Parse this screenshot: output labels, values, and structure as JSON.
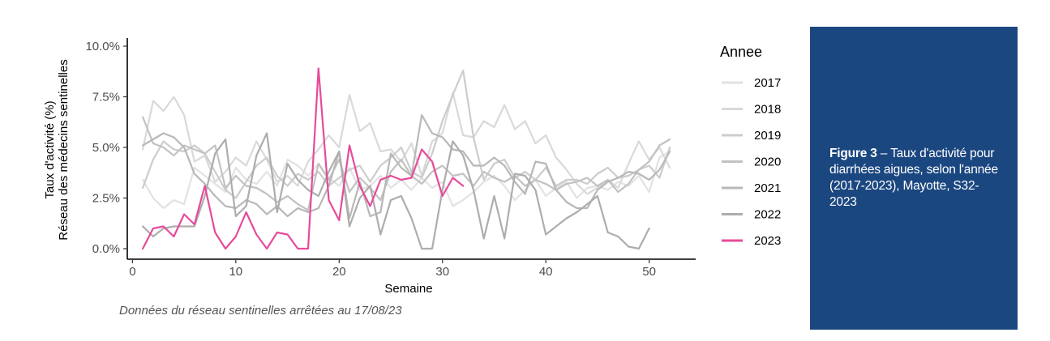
{
  "chart_data": {
    "type": "line",
    "xlabel": "Semaine",
    "ylabel_line1": "Taux d'activité (%)",
    "ylabel_line2": "Réseau des médecins sentinelles",
    "xlim": [
      0,
      52
    ],
    "ylim": [
      0,
      10
    ],
    "x_ticks": [
      0,
      10,
      20,
      30,
      40,
      50
    ],
    "x_tick_labels": [
      "0",
      "10",
      "20",
      "30",
      "40",
      "50"
    ],
    "y_ticks": [
      0,
      2.5,
      5,
      7.5,
      10
    ],
    "y_tick_labels": [
      "0.0%",
      "2.5%",
      "5.0%",
      "7.5%",
      "10.0%"
    ],
    "grid": false,
    "legend_title": "Annee",
    "legend_position": "right",
    "caption": "Données du réseau sentinelles arrêtées au  17/08/23",
    "series": [
      {
        "name": "2017",
        "color": "#e2e2e2",
        "x": [
          1,
          2,
          3,
          4,
          5,
          6,
          7,
          8,
          9,
          10,
          11,
          12,
          13,
          14,
          15,
          16,
          17,
          18,
          19,
          20,
          21,
          22,
          23,
          24,
          25,
          26,
          27,
          28,
          29,
          30,
          31,
          32,
          33,
          34,
          35,
          36,
          37,
          38,
          39,
          40,
          41,
          42,
          43,
          44,
          45,
          46,
          47,
          48,
          49,
          50,
          51,
          52
        ],
        "values": [
          3.4,
          2.5,
          2.0,
          2.4,
          2.2,
          4.0,
          3.6,
          3.2,
          2.8,
          4.0,
          3.4,
          3.2,
          3.8,
          3.1,
          4.4,
          4.1,
          3.6,
          4.2,
          3.5,
          3.1,
          4.0,
          2.9,
          3.1,
          3.6,
          3.0,
          3.4,
          2.9,
          3.5,
          3.0,
          3.3,
          2.1,
          2.4,
          2.8,
          3.3,
          3.6,
          3.1,
          2.4,
          2.9,
          3.4,
          2.6,
          3.0,
          3.3,
          2.5,
          3.0,
          3.1,
          2.9,
          3.3,
          3.1,
          3.6,
          2.8,
          4.5,
          4.8
        ]
      },
      {
        "name": "2018",
        "color": "#d9d9d9",
        "x": [
          1,
          2,
          3,
          4,
          5,
          6,
          7,
          8,
          9,
          10,
          11,
          12,
          13,
          14,
          15,
          16,
          17,
          18,
          19,
          20,
          21,
          22,
          23,
          24,
          25,
          26,
          27,
          28,
          29,
          30,
          31,
          32,
          33,
          34,
          35,
          36,
          37,
          38,
          39,
          40,
          41,
          42,
          43,
          44,
          45,
          46,
          47,
          48,
          49,
          50,
          51,
          52
        ],
        "values": [
          4.9,
          7.3,
          6.8,
          7.5,
          6.6,
          4.3,
          4.6,
          3.3,
          3.8,
          4.5,
          4.1,
          5.3,
          4.4,
          3.3,
          3.6,
          3.1,
          4.3,
          4.9,
          5.6,
          5.0,
          7.6,
          5.8,
          6.2,
          4.8,
          4.9,
          4.3,
          5.2,
          3.6,
          5.3,
          5.7,
          7.7,
          5.6,
          5.5,
          6.3,
          6.0,
          7.1,
          5.9,
          6.3,
          5.2,
          5.6,
          4.5,
          3.9,
          3.2,
          2.7,
          3.0,
          3.4,
          3.0,
          4.2,
          5.3,
          4.4,
          5.0,
          4.0
        ]
      },
      {
        "name": "2019",
        "color": "#cccccc",
        "x": [
          1,
          2,
          3,
          4,
          5,
          6,
          7,
          8,
          9,
          10,
          11,
          12,
          13,
          14,
          15,
          16,
          17,
          18,
          19,
          20,
          21,
          22,
          23,
          24,
          25,
          26,
          27,
          28,
          29,
          30,
          31,
          32,
          33,
          34,
          35,
          36,
          37,
          38,
          39,
          40,
          41,
          42,
          43,
          44,
          45,
          46,
          47,
          48,
          49,
          50,
          51,
          52
        ],
        "values": [
          3.0,
          4.4,
          5.3,
          4.9,
          4.8,
          5.1,
          4.7,
          3.8,
          2.9,
          2.5,
          3.3,
          4.1,
          4.5,
          3.6,
          3.1,
          3.7,
          3.4,
          3.8,
          3.1,
          3.5,
          3.9,
          4.1,
          3.3,
          4.1,
          4.5,
          5.0,
          3.8,
          3.5,
          4.7,
          6.3,
          7.6,
          8.8,
          5.5,
          3.4,
          4.2,
          4.4,
          3.5,
          3.8,
          3.4,
          4.0,
          3.1,
          3.4,
          3.4,
          3.2,
          3.7,
          4.0,
          3.5,
          3.6,
          3.9,
          4.1,
          3.5,
          5.0
        ]
      },
      {
        "name": "2020",
        "color": "#c2c2c2",
        "x": [
          1,
          2,
          3,
          4,
          5,
          6,
          7,
          8,
          9,
          10,
          11,
          12,
          13,
          14,
          15,
          16,
          17,
          18,
          19,
          20,
          21,
          22,
          23,
          24,
          25,
          26,
          27,
          28,
          29,
          30,
          31,
          32,
          33,
          34,
          35,
          36,
          37,
          38,
          39,
          40,
          41,
          42,
          43,
          44,
          45,
          46,
          47,
          48,
          49,
          50,
          51,
          52
        ],
        "values": [
          6.5,
          5.2,
          5.0,
          4.6,
          5.1,
          4.9,
          4.7,
          5.1,
          3.0,
          3.6,
          3.1,
          3.0,
          2.7,
          2.3,
          2.6,
          2.2,
          1.9,
          4.2,
          3.4,
          4.4,
          2.8,
          3.5,
          3.0,
          2.4,
          3.8,
          4.4,
          3.6,
          3.2,
          3.8,
          4.1,
          3.6,
          3.7,
          3.1,
          3.8,
          3.5,
          3.3,
          3.6,
          3.1,
          3.4,
          3.2,
          2.9,
          3.2,
          3.3,
          3.5,
          3.1,
          3.4,
          2.8,
          3.2,
          3.9,
          4.3,
          5.1,
          5.4
        ]
      },
      {
        "name": "2021",
        "color": "#b8b8b8",
        "x": [
          1,
          2,
          3,
          4,
          5,
          6,
          7,
          8,
          9,
          10,
          11,
          12,
          13,
          14,
          15,
          16,
          17,
          18,
          19,
          20,
          21,
          22,
          23,
          24,
          25,
          26,
          27,
          28,
          29,
          30,
          31,
          32,
          33,
          34,
          35,
          36,
          37,
          38,
          39,
          40,
          41,
          42,
          43,
          44,
          45,
          46,
          47,
          48,
          49,
          50,
          51,
          52
        ],
        "values": [
          5.1,
          5.4,
          5.7,
          5.5,
          5.0,
          3.7,
          3.2,
          2.6,
          2.1,
          2.0,
          2.4,
          2.2,
          1.7,
          2.1,
          1.6,
          2.0,
          1.8,
          2.0,
          3.1,
          4.8,
          1.5,
          3.3,
          1.6,
          1.8,
          4.7,
          4.0,
          3.6,
          6.6,
          5.7,
          5.5,
          4.9,
          4.8,
          4.1,
          4.1,
          4.5,
          4.1,
          3.3,
          2.7,
          4.3,
          4.2,
          2.9,
          2.3,
          2.0,
          2.0,
          2.9,
          3.3,
          3.5,
          3.8,
          3.7,
          3.4,
          3.9,
          4.8
        ]
      },
      {
        "name": "2022",
        "color": "#adadad",
        "x": [
          1,
          2,
          3,
          4,
          5,
          6,
          7,
          8,
          9,
          10,
          11,
          12,
          13,
          14,
          15,
          16,
          17,
          18,
          19,
          20,
          21,
          22,
          23,
          24,
          25,
          26,
          27,
          28,
          29,
          30,
          31,
          32,
          33,
          34,
          35,
          36,
          37,
          38,
          39,
          40,
          41,
          42,
          43,
          44,
          45,
          46,
          47,
          48,
          49,
          50
        ],
        "values": [
          1.1,
          0.6,
          1.0,
          1.1,
          1.1,
          1.1,
          2.6,
          4.7,
          5.4,
          1.6,
          2.1,
          4.6,
          5.7,
          1.8,
          4.2,
          3.4,
          2.9,
          2.6,
          3.8,
          4.8,
          1.1,
          2.5,
          3.1,
          0.7,
          2.4,
          2.6,
          1.5,
          0.0,
          0.0,
          2.9,
          5.3,
          4.6,
          2.9,
          0.5,
          2.6,
          0.5,
          3.7,
          3.6,
          2.9,
          0.7,
          1.1,
          1.5,
          1.8,
          2.2,
          2.6,
          0.8,
          0.6,
          0.1,
          0.0,
          1.0
        ]
      },
      {
        "name": "2023",
        "color": "#e64b9a",
        "x": [
          1,
          2,
          3,
          4,
          5,
          6,
          7,
          8,
          9,
          10,
          11,
          12,
          13,
          14,
          15,
          16,
          17,
          18,
          19,
          20,
          21,
          22,
          23,
          24,
          25,
          26,
          27,
          28,
          29,
          30,
          31,
          32
        ],
        "values": [
          0.0,
          1.0,
          1.1,
          0.6,
          1.7,
          1.2,
          3.1,
          0.8,
          0.0,
          0.6,
          1.8,
          0.7,
          0.0,
          0.8,
          0.7,
          0.0,
          0.0,
          8.9,
          2.4,
          1.4,
          5.1,
          3.1,
          2.1,
          3.4,
          3.6,
          3.4,
          3.5,
          4.9,
          4.3,
          2.6,
          3.5,
          3.1
        ]
      }
    ]
  },
  "figure_box": {
    "label": "Figure 3",
    "separator": " –  ",
    "text": "Taux d'activité pour diarrhées aigues, selon l'année (2017-2023), Mayotte, S32-2023",
    "background": "#1b4780"
  }
}
